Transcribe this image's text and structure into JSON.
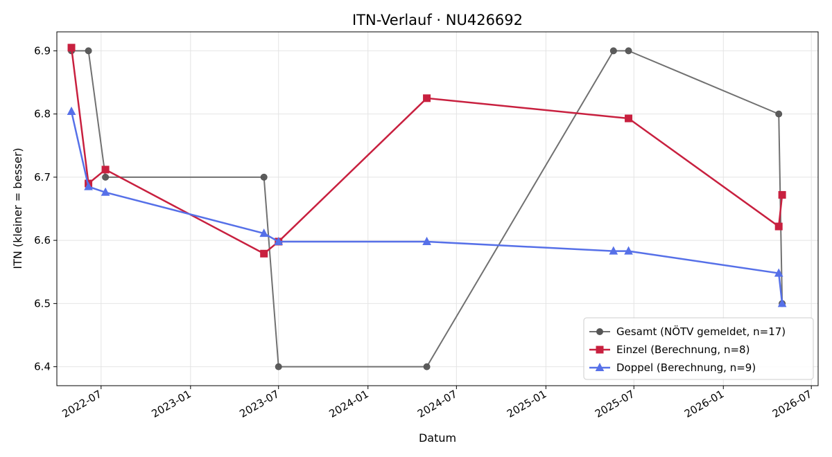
{
  "chart_data": {
    "type": "line",
    "title": "ITN-Verlauf · NU426692",
    "xlabel": "Datum",
    "ylabel": "ITN  (kleiner = besser)",
    "x_ticks": [
      "2022-07",
      "2023-01",
      "2023-07",
      "2024-01",
      "2024-07",
      "2025-01",
      "2025-07",
      "2026-01",
      "2026-07"
    ],
    "y_ticks": [
      6.4,
      6.5,
      6.6,
      6.7,
      6.8,
      6.9
    ],
    "xlim": [
      "2022-04-01",
      "2026-07-15"
    ],
    "ylim": [
      6.37,
      6.93
    ],
    "grid": true,
    "legend_position": "lower-right",
    "series": [
      {
        "name": "Gesamt (NÖTV gemeldet, n=17)",
        "color": "#707070",
        "marker": "circle",
        "points": [
          {
            "x": "2022-05-01",
            "y": 6.9
          },
          {
            "x": "2022-06-05",
            "y": 6.9
          },
          {
            "x": "2022-07-10",
            "y": 6.7
          },
          {
            "x": "2023-06-01",
            "y": 6.7
          },
          {
            "x": "2023-07-01",
            "y": 6.4
          },
          {
            "x": "2024-05-01",
            "y": 6.4
          },
          {
            "x": "2025-05-20",
            "y": 6.9
          },
          {
            "x": "2025-06-20",
            "y": 6.9
          },
          {
            "x": "2026-04-25",
            "y": 6.8
          },
          {
            "x": "2026-05-02",
            "y": 6.5
          }
        ]
      },
      {
        "name": "Einzel (Berechnung, n=8)",
        "color": "#c8203f",
        "marker": "square",
        "points": [
          {
            "x": "2022-05-01",
            "y": 6.905
          },
          {
            "x": "2022-06-05",
            "y": 6.69
          },
          {
            "x": "2022-07-10",
            "y": 6.712
          },
          {
            "x": "2023-06-01",
            "y": 6.579
          },
          {
            "x": "2023-07-01",
            "y": 6.598
          },
          {
            "x": "2024-05-01",
            "y": 6.825
          },
          {
            "x": "2025-06-20",
            "y": 6.793
          },
          {
            "x": "2026-04-25",
            "y": 6.622
          },
          {
            "x": "2026-05-02",
            "y": 6.672
          }
        ]
      },
      {
        "name": "Doppel (Berechnung, n=9)",
        "color": "#5670e8",
        "marker": "triangle",
        "points": [
          {
            "x": "2022-05-01",
            "y": 6.804
          },
          {
            "x": "2022-06-05",
            "y": 6.685
          },
          {
            "x": "2022-07-10",
            "y": 6.676
          },
          {
            "x": "2023-06-01",
            "y": 6.611
          },
          {
            "x": "2023-07-01",
            "y": 6.598
          },
          {
            "x": "2024-05-01",
            "y": 6.598
          },
          {
            "x": "2025-05-20",
            "y": 6.583
          },
          {
            "x": "2025-06-20",
            "y": 6.583
          },
          {
            "x": "2026-04-25",
            "y": 6.548
          },
          {
            "x": "2026-05-02",
            "y": 6.5
          }
        ]
      }
    ]
  }
}
